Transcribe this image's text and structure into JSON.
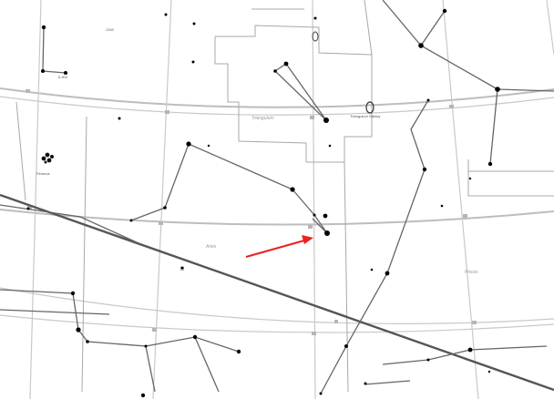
{
  "labels": {
    "perseus": "Perseus",
    "triangulum": "Triangulum",
    "aries": "Aries",
    "pisces": "Pisces",
    "triangulum_galaxy": "Triangulum Galaxy",
    "label_near_top": "1392",
    "label_near_left_cluster": "6.300"
  },
  "colors": {
    "arrow": "#e8221c",
    "star": "#000000",
    "ecliptic": "#555555"
  },
  "icons": {
    "arrow": "red-arrow-icon",
    "galaxy": "galaxy-icon",
    "cluster": "star-cluster-icon"
  }
}
